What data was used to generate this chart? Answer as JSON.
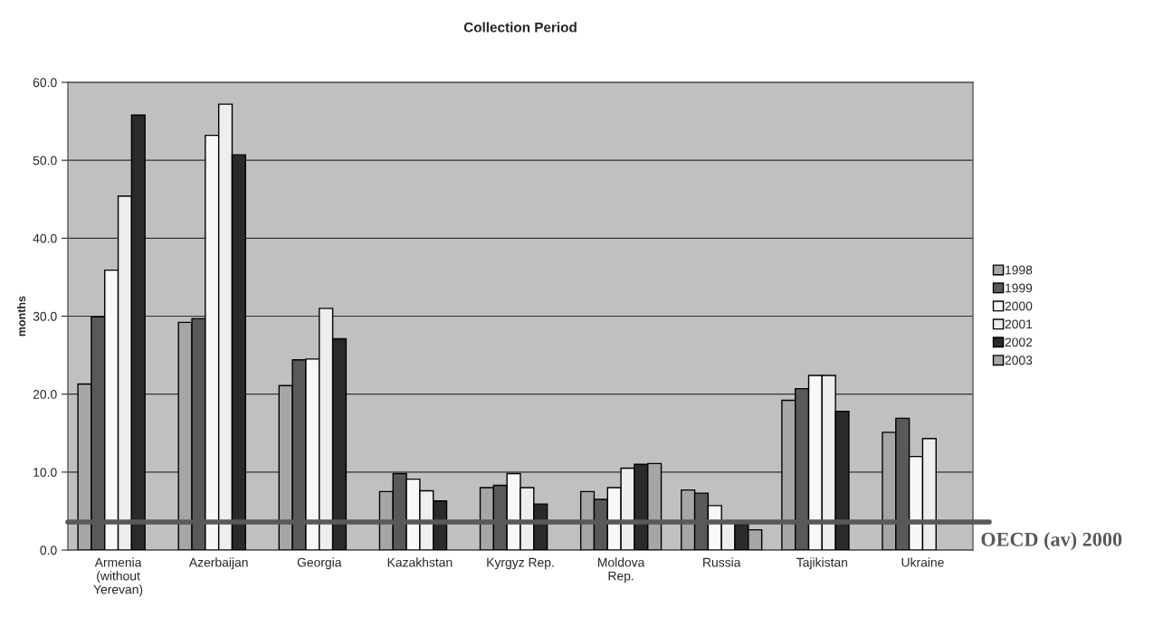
{
  "chart_data": {
    "type": "bar",
    "title": "Collection Period",
    "ylabel": "months",
    "categories": [
      "Armenia\n(without\nYerevan)",
      "Azerbaijan",
      "Georgia",
      "Kazakhstan",
      "Kyrgyz Rep.",
      "Moldova\nRep.",
      "Russia",
      "Tajikistan",
      "Ukraine"
    ],
    "series": [
      {
        "name": "1998",
        "color": "#a6a6a6",
        "values": [
          21.3,
          29.2,
          21.1,
          7.5,
          8.0,
          7.5,
          7.7,
          19.2,
          15.1
        ]
      },
      {
        "name": "1999",
        "color": "#595959",
        "values": [
          29.9,
          29.7,
          24.4,
          9.8,
          8.3,
          6.5,
          7.3,
          20.7,
          16.9
        ]
      },
      {
        "name": "2000",
        "color": "#f8f8f8",
        "values": [
          35.9,
          53.2,
          24.5,
          9.1,
          9.8,
          8.0,
          5.7,
          22.4,
          12.0
        ]
      },
      {
        "name": "2001",
        "color": "#eeeeee",
        "values": [
          45.4,
          57.2,
          31.0,
          7.6,
          8.0,
          10.5,
          3.7,
          22.4,
          14.3
        ]
      },
      {
        "name": "2002",
        "color": "#2a2a2a",
        "values": [
          55.8,
          50.7,
          27.1,
          6.3,
          5.9,
          11.0,
          3.3,
          17.8,
          null
        ]
      },
      {
        "name": "2003",
        "color": "#a6a6a6",
        "values": [
          null,
          null,
          null,
          null,
          null,
          11.1,
          2.6,
          null,
          null
        ]
      }
    ],
    "ylim": [
      0,
      60
    ],
    "yticks": [
      {
        "value": 0,
        "label": "0.0"
      },
      {
        "value": 10,
        "label": "10.0"
      },
      {
        "value": 20,
        "label": "20.0"
      },
      {
        "value": 30,
        "label": "30.0"
      },
      {
        "value": 40,
        "label": "40.0"
      },
      {
        "value": 50,
        "label": "50.0"
      },
      {
        "value": 60,
        "label": "60.0"
      }
    ],
    "grid": "y",
    "legend": "right",
    "ref_lines": [
      {
        "axis": "y",
        "value": 3.6,
        "label": "OECD (av) 2000",
        "color": "#595959"
      }
    ]
  }
}
